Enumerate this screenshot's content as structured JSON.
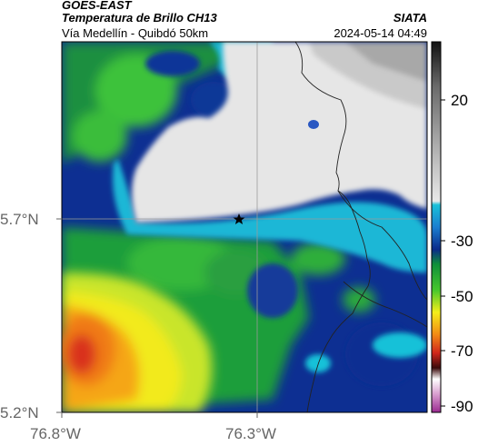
{
  "header": {
    "satellite": "GOES-EAST",
    "product": "Temperatura de Brillo CH13",
    "region": "Vía Medellín - Quibdó 50km",
    "org": "SIATA",
    "datetime": "2024-05-14 04:49"
  },
  "axes": {
    "y_ticks": [
      "5.7°N",
      "5.2°N"
    ],
    "x_ticks": [
      "76.8°W",
      "76.3°W"
    ]
  },
  "colorbar": {
    "labels": [
      "20",
      "-30",
      "-50",
      "-70",
      "-90"
    ],
    "colors": {
      "warm_top": "#111111",
      "gray_light": "#e8e8e8",
      "cyan": "#19c1d8",
      "blue": "#0b2a8a",
      "green": "#22b43a",
      "yellow": "#f4ee1a",
      "orange": "#f28a16",
      "red": "#d0261b",
      "dark": "#3a0a0a",
      "magenta": "#c05ab0"
    }
  },
  "map": {
    "marker": "star-marker"
  }
}
